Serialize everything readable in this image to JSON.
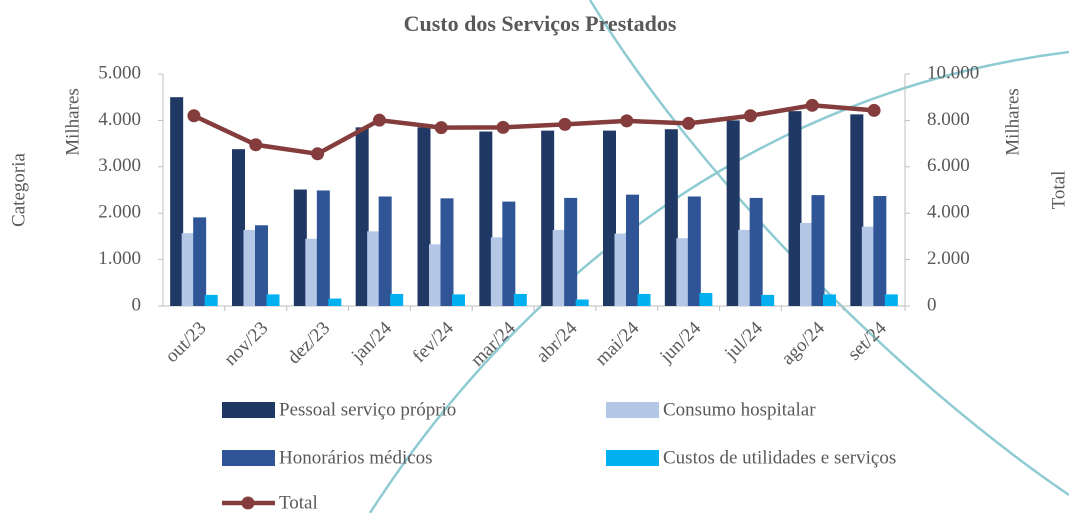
{
  "chart_data": {
    "type": "bar",
    "title": "Custo dos Serviços Prestados",
    "y_title": "Milhares",
    "y_label": "Categoria",
    "y2_title": "Milhares",
    "y2_label": "Total",
    "categories": [
      "out/23",
      "nov/23",
      "dez/23",
      "jan/24",
      "fev/24",
      "mar/24",
      "abr/24",
      "mai/24",
      "jun/24",
      "jul/24",
      "ago/24",
      "set/24"
    ],
    "series": [
      {
        "name": "Pessoal serviço próprio",
        "color": "#1f3864",
        "values": [
          4500,
          3380,
          2510,
          3850,
          3850,
          3760,
          3780,
          3780,
          3810,
          4000,
          4200,
          4130
        ]
      },
      {
        "name": "Consumo hospitalar",
        "color": "#b4c7e7",
        "values": [
          1570,
          1640,
          1450,
          1610,
          1330,
          1480,
          1640,
          1560,
          1460,
          1640,
          1790,
          1710
        ]
      },
      {
        "name": "Honorários médicos",
        "color": "#2f5597",
        "values": [
          1910,
          1740,
          2490,
          2360,
          2320,
          2250,
          2330,
          2400,
          2360,
          2330,
          2390,
          2370
        ]
      },
      {
        "name": "Custos de utilidades e serviços",
        "color": "#00b0f0",
        "values": [
          240,
          250,
          160,
          260,
          250,
          260,
          140,
          260,
          280,
          240,
          250,
          250
        ]
      },
      {
        "name": "Total",
        "color": "#843c3c",
        "type": "line",
        "axis": "y2",
        "values": [
          8200,
          6950,
          6560,
          8010,
          7690,
          7700,
          7830,
          7980,
          7870,
          8200,
          8650,
          8430
        ]
      }
    ],
    "ylim": [
      0,
      5000
    ],
    "yticks": [
      0,
      {
        "value": 1000,
        "label": "1.000"
      },
      {
        "value": 2000,
        "label": "2.000"
      },
      {
        "value": 3000,
        "label": "3.000"
      },
      {
        "value": 4000,
        "label": "4.000"
      },
      {
        "value": 5000,
        "label": "5.000"
      }
    ],
    "y2lim": [
      0,
      10000
    ],
    "y2ticks": [
      0,
      {
        "value": 2000,
        "label": "2.000"
      },
      {
        "value": 4000,
        "label": "4.000"
      },
      {
        "value": 6000,
        "label": "6.000"
      },
      {
        "value": 8000,
        "label": "8.000"
      },
      {
        "value": 10000,
        "label": "10.000"
      }
    ],
    "legend": "bottom"
  }
}
